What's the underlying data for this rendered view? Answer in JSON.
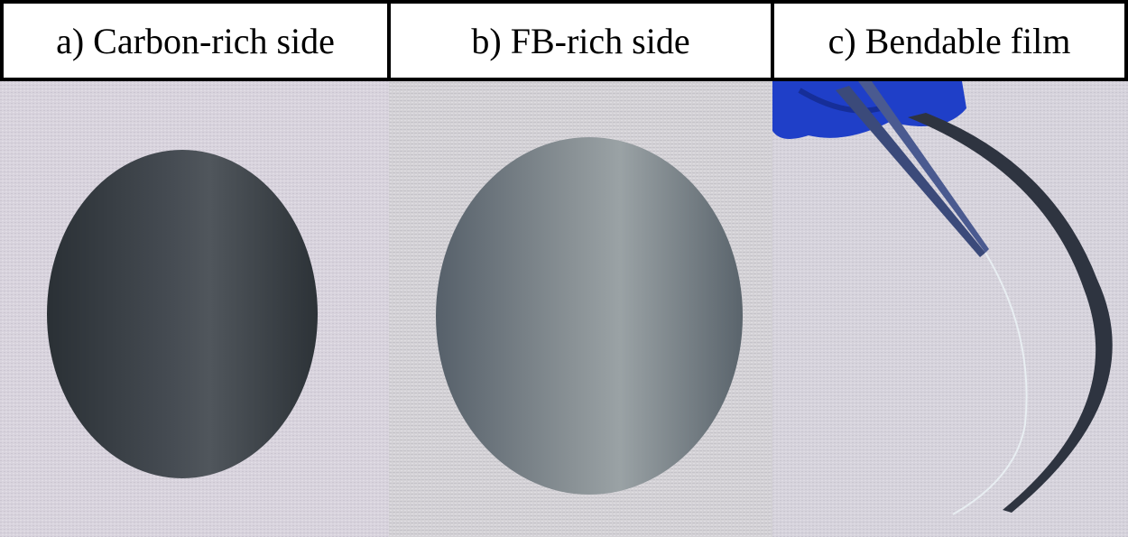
{
  "panels": [
    {
      "label": "a) Carbon-rich side"
    },
    {
      "label": "b) FB-rich side"
    },
    {
      "label": "c) Bendable film"
    }
  ],
  "colors": {
    "background_fabric": "#d9d4de",
    "carbon_side": "#3a4046",
    "fb_side": "#6a7378",
    "glove": "#1f3fc8",
    "border": "#000000"
  },
  "icons": [
    "carbon-film-photo",
    "fb-film-photo",
    "bent-film-photo",
    "glove-icon",
    "tweezers-icon"
  ]
}
